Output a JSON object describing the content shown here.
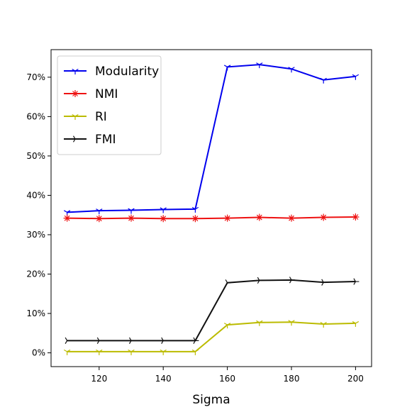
{
  "chart_data": {
    "type": "line",
    "title": "",
    "xlabel": "Sigma",
    "ylabel": "",
    "x": [
      110,
      120,
      130,
      140,
      150,
      160,
      170,
      180,
      190,
      200
    ],
    "xlim": [
      105,
      205
    ],
    "ylim": [
      -3.5,
      77
    ],
    "x_ticks": [
      120,
      140,
      160,
      180,
      200
    ],
    "y_ticks": [
      0,
      10,
      20,
      30,
      40,
      50,
      60,
      70
    ],
    "y_tick_labels": [
      "0%",
      "10%",
      "20%",
      "30%",
      "40%",
      "50%",
      "60%",
      "70%"
    ],
    "grid": false,
    "legend_position": "top-left",
    "series": [
      {
        "name": "Modularity",
        "color": "#0000ee",
        "marker": "tri-down",
        "values": [
          35.7,
          36.1,
          36.2,
          36.4,
          36.5,
          72.6,
          73.2,
          72.1,
          69.3,
          70.2
        ]
      },
      {
        "name": "NMI",
        "color": "#ee1111",
        "marker": "star",
        "values": [
          34.2,
          34.1,
          34.2,
          34.1,
          34.1,
          34.2,
          34.4,
          34.2,
          34.4,
          34.5
        ]
      },
      {
        "name": "RI",
        "color": "#bbbb00",
        "marker": "tri-down",
        "values": [
          0.3,
          0.3,
          0.3,
          0.3,
          0.3,
          7.1,
          7.7,
          7.8,
          7.3,
          7.5
        ]
      },
      {
        "name": "FMI",
        "color": "#111111",
        "marker": "tri-right",
        "values": [
          3.1,
          3.1,
          3.1,
          3.1,
          3.1,
          17.8,
          18.4,
          18.5,
          17.9,
          18.1
        ]
      }
    ]
  }
}
